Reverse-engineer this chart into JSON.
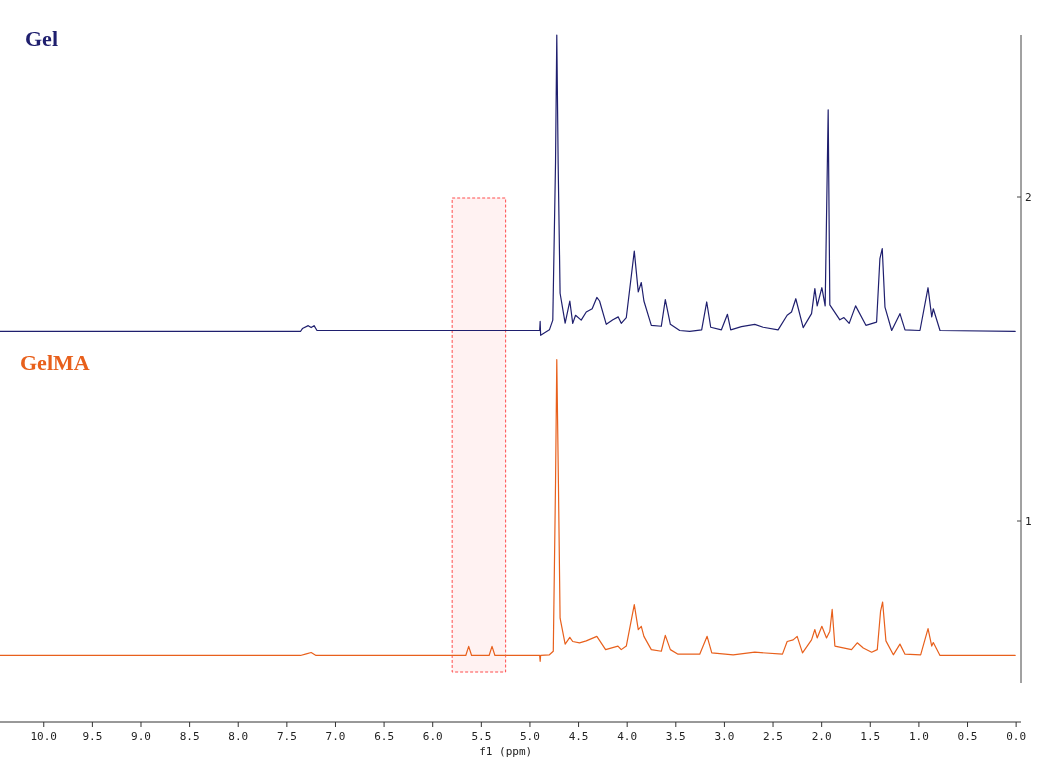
{
  "chart_data": {
    "type": "line",
    "xlabel": "f1 (ppm)",
    "xlim": [
      10.45,
      -0.05
    ],
    "xticks": [
      {
        "value": 10,
        "label": "10.0"
      },
      {
        "value": 9.5,
        "label": "9.5"
      },
      {
        "value": 9,
        "label": "9.0"
      },
      {
        "value": 8.5,
        "label": "8.5"
      },
      {
        "value": 8,
        "label": "8.0"
      },
      {
        "value": 7.5,
        "label": "7.5"
      },
      {
        "value": 7,
        "label": "7.0"
      },
      {
        "value": 6.5,
        "label": "6.5"
      },
      {
        "value": 6,
        "label": "6.0"
      },
      {
        "value": 5.5,
        "label": "5.5"
      },
      {
        "value": 5,
        "label": "5.0"
      },
      {
        "value": 4.5,
        "label": "4.5"
      },
      {
        "value": 4,
        "label": "4.0"
      },
      {
        "value": 3.5,
        "label": "3.5"
      },
      {
        "value": 3,
        "label": "3.0"
      },
      {
        "value": 2.5,
        "label": "2.5"
      },
      {
        "value": 2,
        "label": "2.0"
      },
      {
        "value": 1.5,
        "label": "1.5"
      },
      {
        "value": 1,
        "label": "1.0"
      },
      {
        "value": 0.5,
        "label": "0.5"
      },
      {
        "value": 0,
        "label": "0.0"
      }
    ],
    "ylim": [
      0.5,
      2.5
    ],
    "yticks": [
      1,
      2
    ],
    "grid": false,
    "bands": [
      {
        "axis": "x",
        "from": 5.8,
        "to": 5.25,
        "color": "#ff4d4d"
      }
    ],
    "series": [
      {
        "name": "Gel",
        "color": "#1f1f6e",
        "x": [
          10.45,
          7.36,
          7.34,
          7.28,
          7.25,
          7.22,
          7.19,
          5.31,
          4.9,
          4.895,
          4.89,
          4.8,
          4.765,
          4.737,
          4.724,
          4.71,
          4.69,
          4.638,
          4.59,
          4.56,
          4.531,
          4.473,
          4.421,
          4.36,
          4.312,
          4.284,
          4.215,
          4.147,
          4.092,
          4.061,
          4.009,
          3.927,
          3.886,
          3.855,
          3.828,
          3.752,
          3.649,
          3.608,
          3.556,
          3.46,
          3.357,
          3.234,
          3.182,
          3.141,
          3.031,
          2.969,
          2.935,
          2.825,
          2.688,
          2.602,
          2.448,
          2.355,
          2.31,
          2.266,
          2.19,
          2.104,
          2.07,
          2.046,
          1.998,
          1.964,
          1.933,
          1.916,
          1.813,
          1.771,
          1.717,
          1.651,
          1.545,
          1.435,
          1.401,
          1.377,
          1.349,
          1.28,
          1.195,
          1.143,
          0.989,
          0.906,
          0.868,
          0.852,
          0.783,
          0.01
        ],
        "values": [
          1.585,
          1.585,
          1.594,
          1.603,
          1.597,
          1.603,
          1.588,
          1.588,
          1.588,
          1.616,
          1.573,
          1.59,
          1.62,
          2.105,
          2.5,
          2.105,
          1.703,
          1.611,
          1.679,
          1.61,
          1.635,
          1.62,
          1.645,
          1.655,
          1.69,
          1.679,
          1.607,
          1.621,
          1.63,
          1.61,
          1.628,
          1.833,
          1.707,
          1.736,
          1.679,
          1.604,
          1.601,
          1.683,
          1.607,
          1.588,
          1.585,
          1.59,
          1.676,
          1.598,
          1.59,
          1.638,
          1.59,
          1.6,
          1.607,
          1.598,
          1.59,
          1.635,
          1.645,
          1.686,
          1.597,
          1.64,
          1.717,
          1.664,
          1.72,
          1.664,
          2.269,
          1.667,
          1.621,
          1.628,
          1.61,
          1.664,
          1.604,
          1.614,
          1.81,
          1.841,
          1.66,
          1.588,
          1.64,
          1.59,
          1.588,
          1.72,
          1.63,
          1.655,
          1.588,
          1.585
        ]
      },
      {
        "name": "GelMA",
        "color": "#e8601c",
        "x": [
          10.45,
          7.36,
          7.3,
          7.25,
          7.2,
          5.66,
          5.63,
          5.6,
          5.42,
          5.39,
          5.36,
          4.9,
          4.895,
          4.89,
          4.8,
          4.76,
          4.737,
          4.724,
          4.707,
          4.69,
          4.638,
          4.59,
          4.56,
          4.49,
          4.421,
          4.312,
          4.222,
          4.095,
          4.061,
          4.009,
          3.927,
          3.886,
          3.855,
          3.828,
          3.752,
          3.649,
          3.608,
          3.556,
          3.477,
          3.254,
          3.178,
          3.13,
          2.91,
          2.688,
          2.403,
          2.355,
          2.293,
          2.252,
          2.197,
          2.104,
          2.07,
          2.046,
          1.998,
          1.95,
          1.916,
          1.892,
          1.864,
          1.693,
          1.634,
          1.572,
          1.486,
          1.428,
          1.394,
          1.373,
          1.339,
          1.263,
          1.195,
          1.143,
          0.982,
          0.906,
          0.868,
          0.852,
          0.783,
          0.01
        ],
        "values": [
          0.585,
          0.585,
          0.59,
          0.594,
          0.585,
          0.585,
          0.613,
          0.585,
          0.585,
          0.613,
          0.585,
          0.585,
          0.567,
          0.585,
          0.587,
          0.598,
          1.115,
          1.498,
          1.115,
          0.7,
          0.62,
          0.641,
          0.628,
          0.624,
          0.63,
          0.644,
          0.603,
          0.614,
          0.603,
          0.614,
          0.742,
          0.665,
          0.675,
          0.644,
          0.603,
          0.598,
          0.647,
          0.603,
          0.589,
          0.589,
          0.644,
          0.593,
          0.587,
          0.595,
          0.589,
          0.628,
          0.633,
          0.644,
          0.593,
          0.633,
          0.665,
          0.639,
          0.675,
          0.639,
          0.66,
          0.727,
          0.614,
          0.603,
          0.624,
          0.608,
          0.595,
          0.603,
          0.722,
          0.75,
          0.63,
          0.587,
          0.62,
          0.589,
          0.587,
          0.668,
          0.614,
          0.625,
          0.585,
          0.585
        ]
      }
    ]
  }
}
